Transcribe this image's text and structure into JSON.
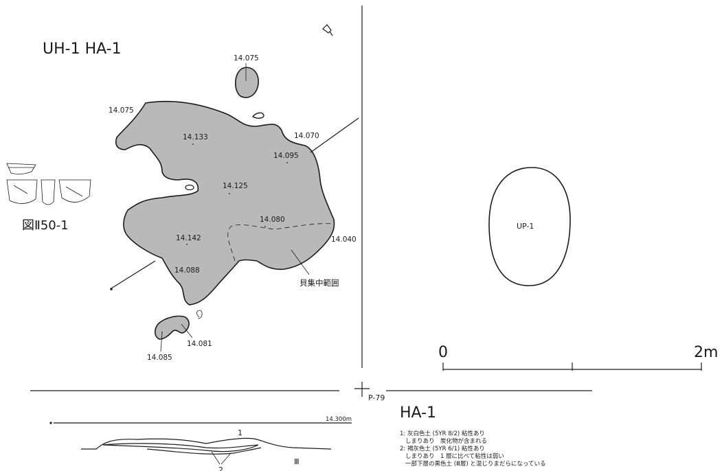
{
  "title": "UH-1 HA-1",
  "figure_ref": "図Ⅱ50-1",
  "pit_label": "UP-1",
  "point_label": "P-79",
  "shell_label": "貝集中範囲",
  "elevations": {
    "e1": "14.075",
    "e2": "14.075",
    "e3": "14.133",
    "e4": "14.070",
    "e5": "14.095",
    "e6": "14.125",
    "e7": "14.080",
    "e8": "14.142",
    "e9": "14.040",
    "e10": "14.088",
    "e11": "14.081",
    "e12": "14.085"
  },
  "scale": {
    "start": "0",
    "end": "2m"
  },
  "section": {
    "title": "HA-1",
    "datum": "14.300m",
    "layer_1": "1",
    "layer_2": "2",
    "layer_3": "Ⅲ"
  },
  "legend": [
    "1: 灰白色土 (5YR 8/2) 粘性あり",
    "しまりあり　炭化物が含まれる",
    "2: 褐灰色土 (5YR 6/1) 粘性あり",
    "しまりあり　1 層に比べて粘性は弱い",
    "一部下層の黒色土 (Ⅲ層) と混じりまだらになっている"
  ]
}
